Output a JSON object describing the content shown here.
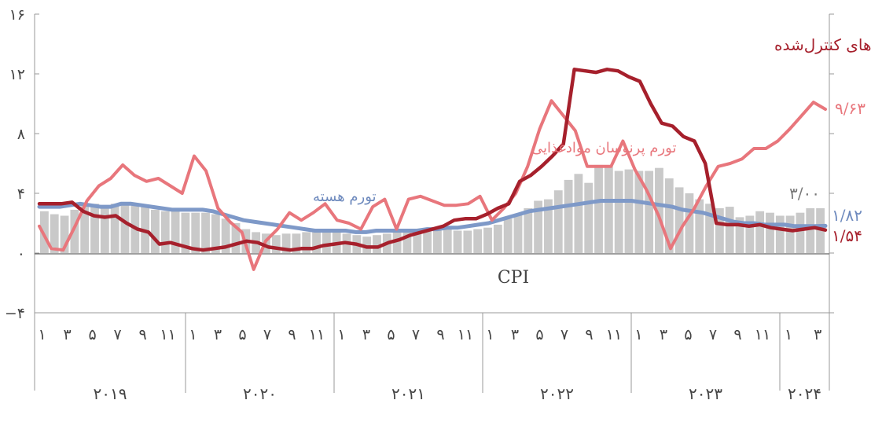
{
  "chart_data": {
    "type": "line",
    "y_ticks": [
      "−۴",
      "۰",
      "۴",
      "۸",
      "۱۲",
      "۱۶"
    ],
    "y_tick_values": [
      -4,
      0,
      4,
      8,
      12,
      16
    ],
    "ylim": [
      -4,
      16
    ],
    "x_month_labels": [
      "۱",
      "۳",
      "۵",
      "۷",
      "۹",
      "۱۱"
    ],
    "x_month_labels_2024": [
      "۱",
      "۳"
    ],
    "years": [
      "۲۰۱۹",
      "۲۰۲۰",
      "۲۰۲۱",
      "۲۰۲۲",
      "۲۰۲۳",
      "۲۰۲۴"
    ],
    "grid": false,
    "cpi_label": "CPI",
    "series": [
      {
        "name": "CPI",
        "kind": "bar",
        "color": "#c9c9c9",
        "values": [
          2.8,
          2.6,
          2.5,
          2.9,
          3.2,
          3.3,
          3.2,
          3.3,
          3.4,
          3.3,
          3.1,
          2.9,
          2.8,
          2.9,
          2.7,
          2.7,
          2.7,
          2.6,
          2.3,
          2.0,
          1.6,
          1.4,
          1.3,
          1.2,
          1.3,
          1.3,
          1.4,
          1.4,
          1.5,
          1.4,
          1.3,
          1.2,
          1.1,
          1.2,
          1.3,
          1.4,
          1.5,
          1.5,
          1.5,
          1.5,
          1.6,
          1.5,
          1.5,
          1.6,
          1.7,
          1.9,
          2.3,
          2.6,
          3.0,
          3.5,
          3.6,
          4.2,
          4.9,
          5.3,
          4.7,
          5.9,
          5.8,
          5.5,
          5.6,
          5.5,
          5.5,
          5.7,
          5.0,
          4.4,
          4.0,
          3.6,
          3.3,
          3.0,
          3.1,
          2.4,
          2.5,
          2.8,
          2.7,
          2.5,
          2.5,
          2.7,
          3.0,
          3.0
        ]
      },
      {
        "name": "تورم هسته",
        "kind": "line",
        "color": "#7e99c8",
        "end_label": "۱/۸۲",
        "values": [
          3.1,
          3.1,
          3.1,
          3.2,
          3.3,
          3.2,
          3.1,
          3.1,
          3.3,
          3.3,
          3.2,
          3.1,
          3.0,
          2.9,
          2.9,
          2.9,
          2.9,
          2.8,
          2.6,
          2.4,
          2.2,
          2.1,
          2.0,
          1.9,
          1.8,
          1.7,
          1.6,
          1.5,
          1.5,
          1.5,
          1.5,
          1.4,
          1.4,
          1.5,
          1.5,
          1.5,
          1.5,
          1.5,
          1.6,
          1.6,
          1.7,
          1.7,
          1.8,
          1.9,
          2.0,
          2.2,
          2.4,
          2.6,
          2.8,
          2.9,
          3.0,
          3.1,
          3.2,
          3.3,
          3.4,
          3.5,
          3.5,
          3.5,
          3.5,
          3.4,
          3.3,
          3.2,
          3.1,
          2.9,
          2.8,
          2.7,
          2.5,
          2.3,
          2.1,
          2.0,
          2.0,
          1.9,
          1.9,
          1.9,
          1.8,
          1.8,
          1.8,
          1.82
        ]
      },
      {
        "name": "تورم پرنوسان موادغذایی",
        "kind": "line",
        "color": "#e8767c",
        "end_label": "۹/۶۳",
        "values": [
          1.8,
          0.3,
          0.2,
          1.8,
          3.5,
          4.5,
          5.0,
          5.9,
          5.2,
          4.8,
          5.0,
          4.5,
          4.0,
          6.5,
          5.5,
          3.0,
          2.1,
          1.4,
          -1.1,
          0.8,
          1.6,
          2.7,
          2.2,
          2.7,
          3.3,
          2.2,
          2.0,
          1.6,
          3.1,
          3.6,
          1.6,
          3.6,
          3.8,
          3.5,
          3.2,
          3.2,
          3.3,
          3.8,
          2.2,
          3.0,
          4.0,
          5.8,
          8.3,
          10.2,
          9.2,
          8.2,
          5.8,
          5.8,
          5.8,
          7.5,
          5.6,
          4.2,
          2.5,
          0.3,
          1.8,
          3.0,
          4.5,
          5.8,
          6.0,
          6.3,
          7.0,
          7.0,
          7.5,
          8.3,
          9.2,
          10.1,
          9.63
        ]
      },
      {
        "name": "قیمت‌های کنترل‌شده",
        "kind": "line",
        "color": "#a6202c",
        "end_label": "۱/۵۴",
        "values": [
          3.3,
          3.3,
          3.3,
          3.4,
          2.8,
          2.5,
          2.4,
          2.5,
          2.0,
          1.6,
          1.4,
          0.6,
          0.7,
          0.5,
          0.3,
          0.2,
          0.3,
          0.4,
          0.6,
          0.8,
          0.7,
          0.4,
          0.3,
          0.2,
          0.3,
          0.3,
          0.5,
          0.6,
          0.7,
          0.6,
          0.4,
          0.4,
          0.7,
          0.9,
          1.2,
          1.4,
          1.6,
          1.8,
          2.2,
          2.3,
          2.3,
          2.6,
          3.0,
          3.3,
          4.8,
          5.2,
          5.8,
          6.5,
          7.3,
          12.3,
          12.2,
          12.1,
          12.3,
          12.2,
          11.8,
          11.5,
          10.0,
          8.7,
          8.5,
          7.8,
          7.5,
          6.0,
          2.0,
          1.9,
          1.9,
          1.8,
          1.9,
          1.7,
          1.6,
          1.5,
          1.6,
          1.7,
          1.54
        ]
      }
    ],
    "bar_end_label": "۳/۰۰",
    "legend_placement": "inline labels"
  }
}
